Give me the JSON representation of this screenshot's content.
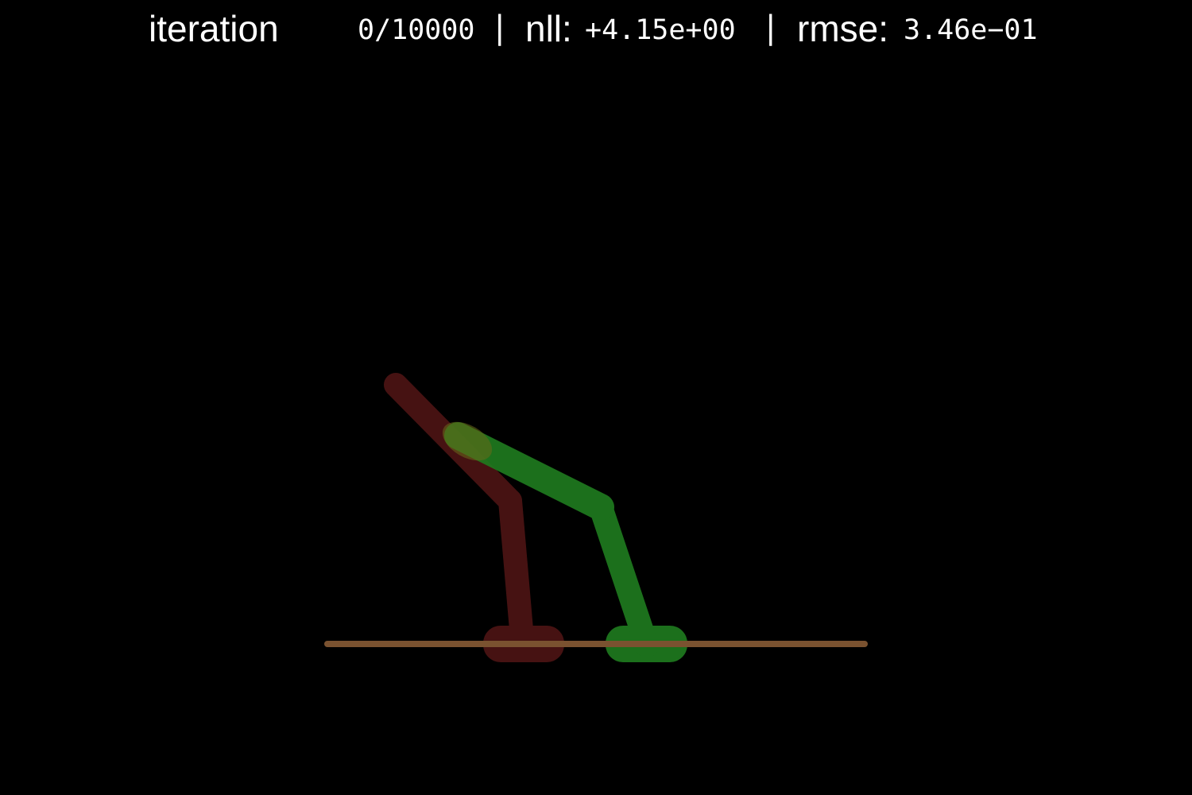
{
  "hud": {
    "iteration_label": "iteration",
    "iteration_value": "0/10000",
    "separator": "|",
    "nll_label": "nll:",
    "nll_value": "+4.15e+00",
    "rmse_label": "rmse:",
    "rmse_value": "3.46e−01"
  },
  "scene": {
    "background_color": "#000000",
    "ground_color": "#7a5230",
    "target_color": "#4a1414",
    "model_color": "#1f7a1f"
  }
}
